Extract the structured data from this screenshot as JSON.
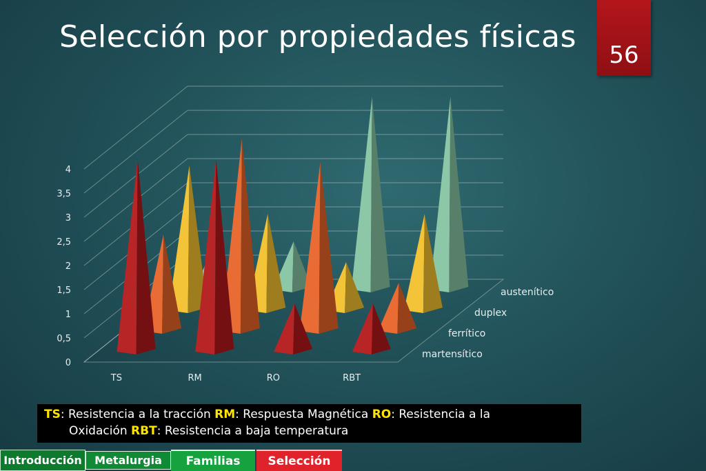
{
  "slide": {
    "title": "Selección por propiedades físicas",
    "page_number": "56"
  },
  "legend_note": {
    "items": [
      {
        "abbr": "TS",
        "text": ": Resistencia a la tracción "
      },
      {
        "abbr": "RM",
        "text": ": Respuesta Magnética "
      },
      {
        "abbr": "RO",
        "text": ": Resistencia a la"
      },
      {
        "abbr": "",
        "text": "Oxidación "
      },
      {
        "abbr": "RBT",
        "text": ": Resistencia a baja temperatura"
      }
    ]
  },
  "nav": {
    "introduccion": "Introducción",
    "metalurgia": "Metalurgia",
    "familias": "Familias",
    "seleccion": "Selección"
  },
  "chart_data": {
    "type": "bar",
    "style": "3d-pyramid",
    "title": "",
    "categories": [
      "TS",
      "RM",
      "RO",
      "RBT"
    ],
    "series": [
      {
        "name": "martensítico",
        "color": "#b3191c",
        "values": [
          4,
          4,
          1,
          1
        ]
      },
      {
        "name": "ferrítico",
        "color": "#e8642a",
        "values": [
          2,
          4,
          3.5,
          1
        ]
      },
      {
        "name": "duplex",
        "color": "#f2c12e",
        "values": [
          3,
          2,
          1,
          2
        ]
      },
      {
        "name": "austenítico",
        "color": "#86c4a2",
        "values": [
          1,
          1,
          4,
          4
        ]
      }
    ],
    "y_ticks": [
      "0",
      "0,5",
      "1",
      "1,5",
      "2",
      "2,5",
      "3",
      "3,5",
      "4"
    ],
    "ylim": [
      0,
      4
    ],
    "grid": true,
    "legend": "series labels along right depth axis"
  }
}
